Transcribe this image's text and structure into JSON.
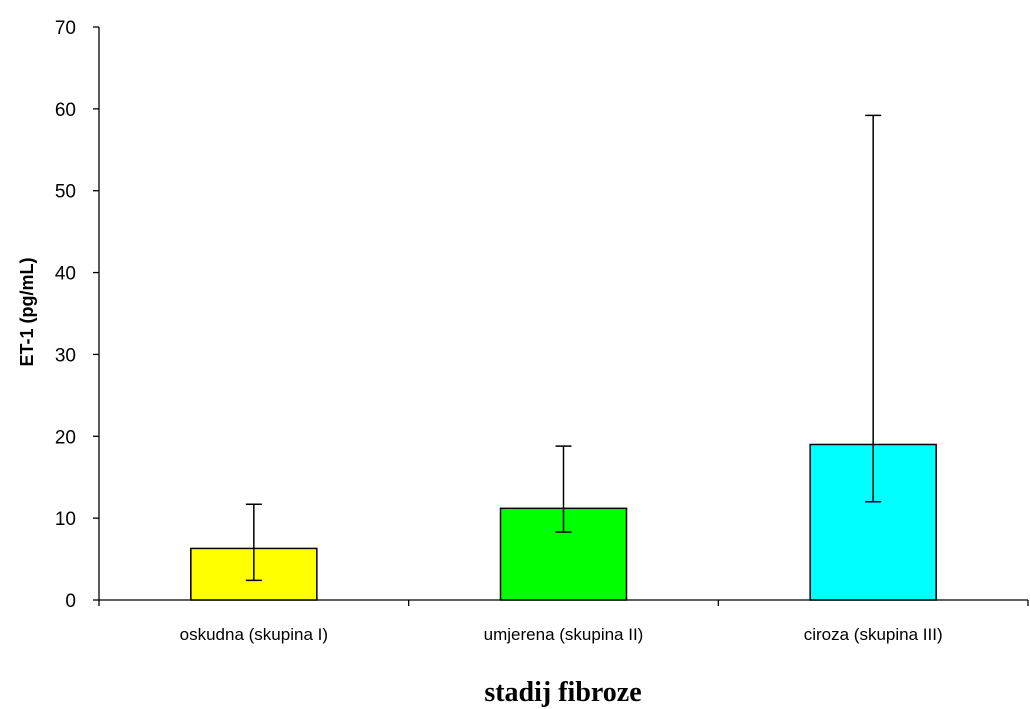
{
  "chart_data": {
    "type": "bar",
    "title": "",
    "xlabel": "stadij fibroze",
    "ylabel": "ET-1 (pg/mL)",
    "ylim": [
      0,
      70
    ],
    "yticks": [
      0,
      10,
      20,
      30,
      40,
      50,
      60,
      70
    ],
    "grid": false,
    "legend": "none",
    "categories": [
      "oskudna (skupina I)",
      "umjerena (skupina II)",
      "ciroza (skupina III)"
    ],
    "values": [
      6.3,
      11.2,
      19.0
    ],
    "error_low": [
      2.4,
      8.3,
      12.0
    ],
    "error_high": [
      11.7,
      18.8,
      59.2
    ],
    "colors": [
      "#ffff00",
      "#00ff00",
      "#00ffff"
    ]
  }
}
